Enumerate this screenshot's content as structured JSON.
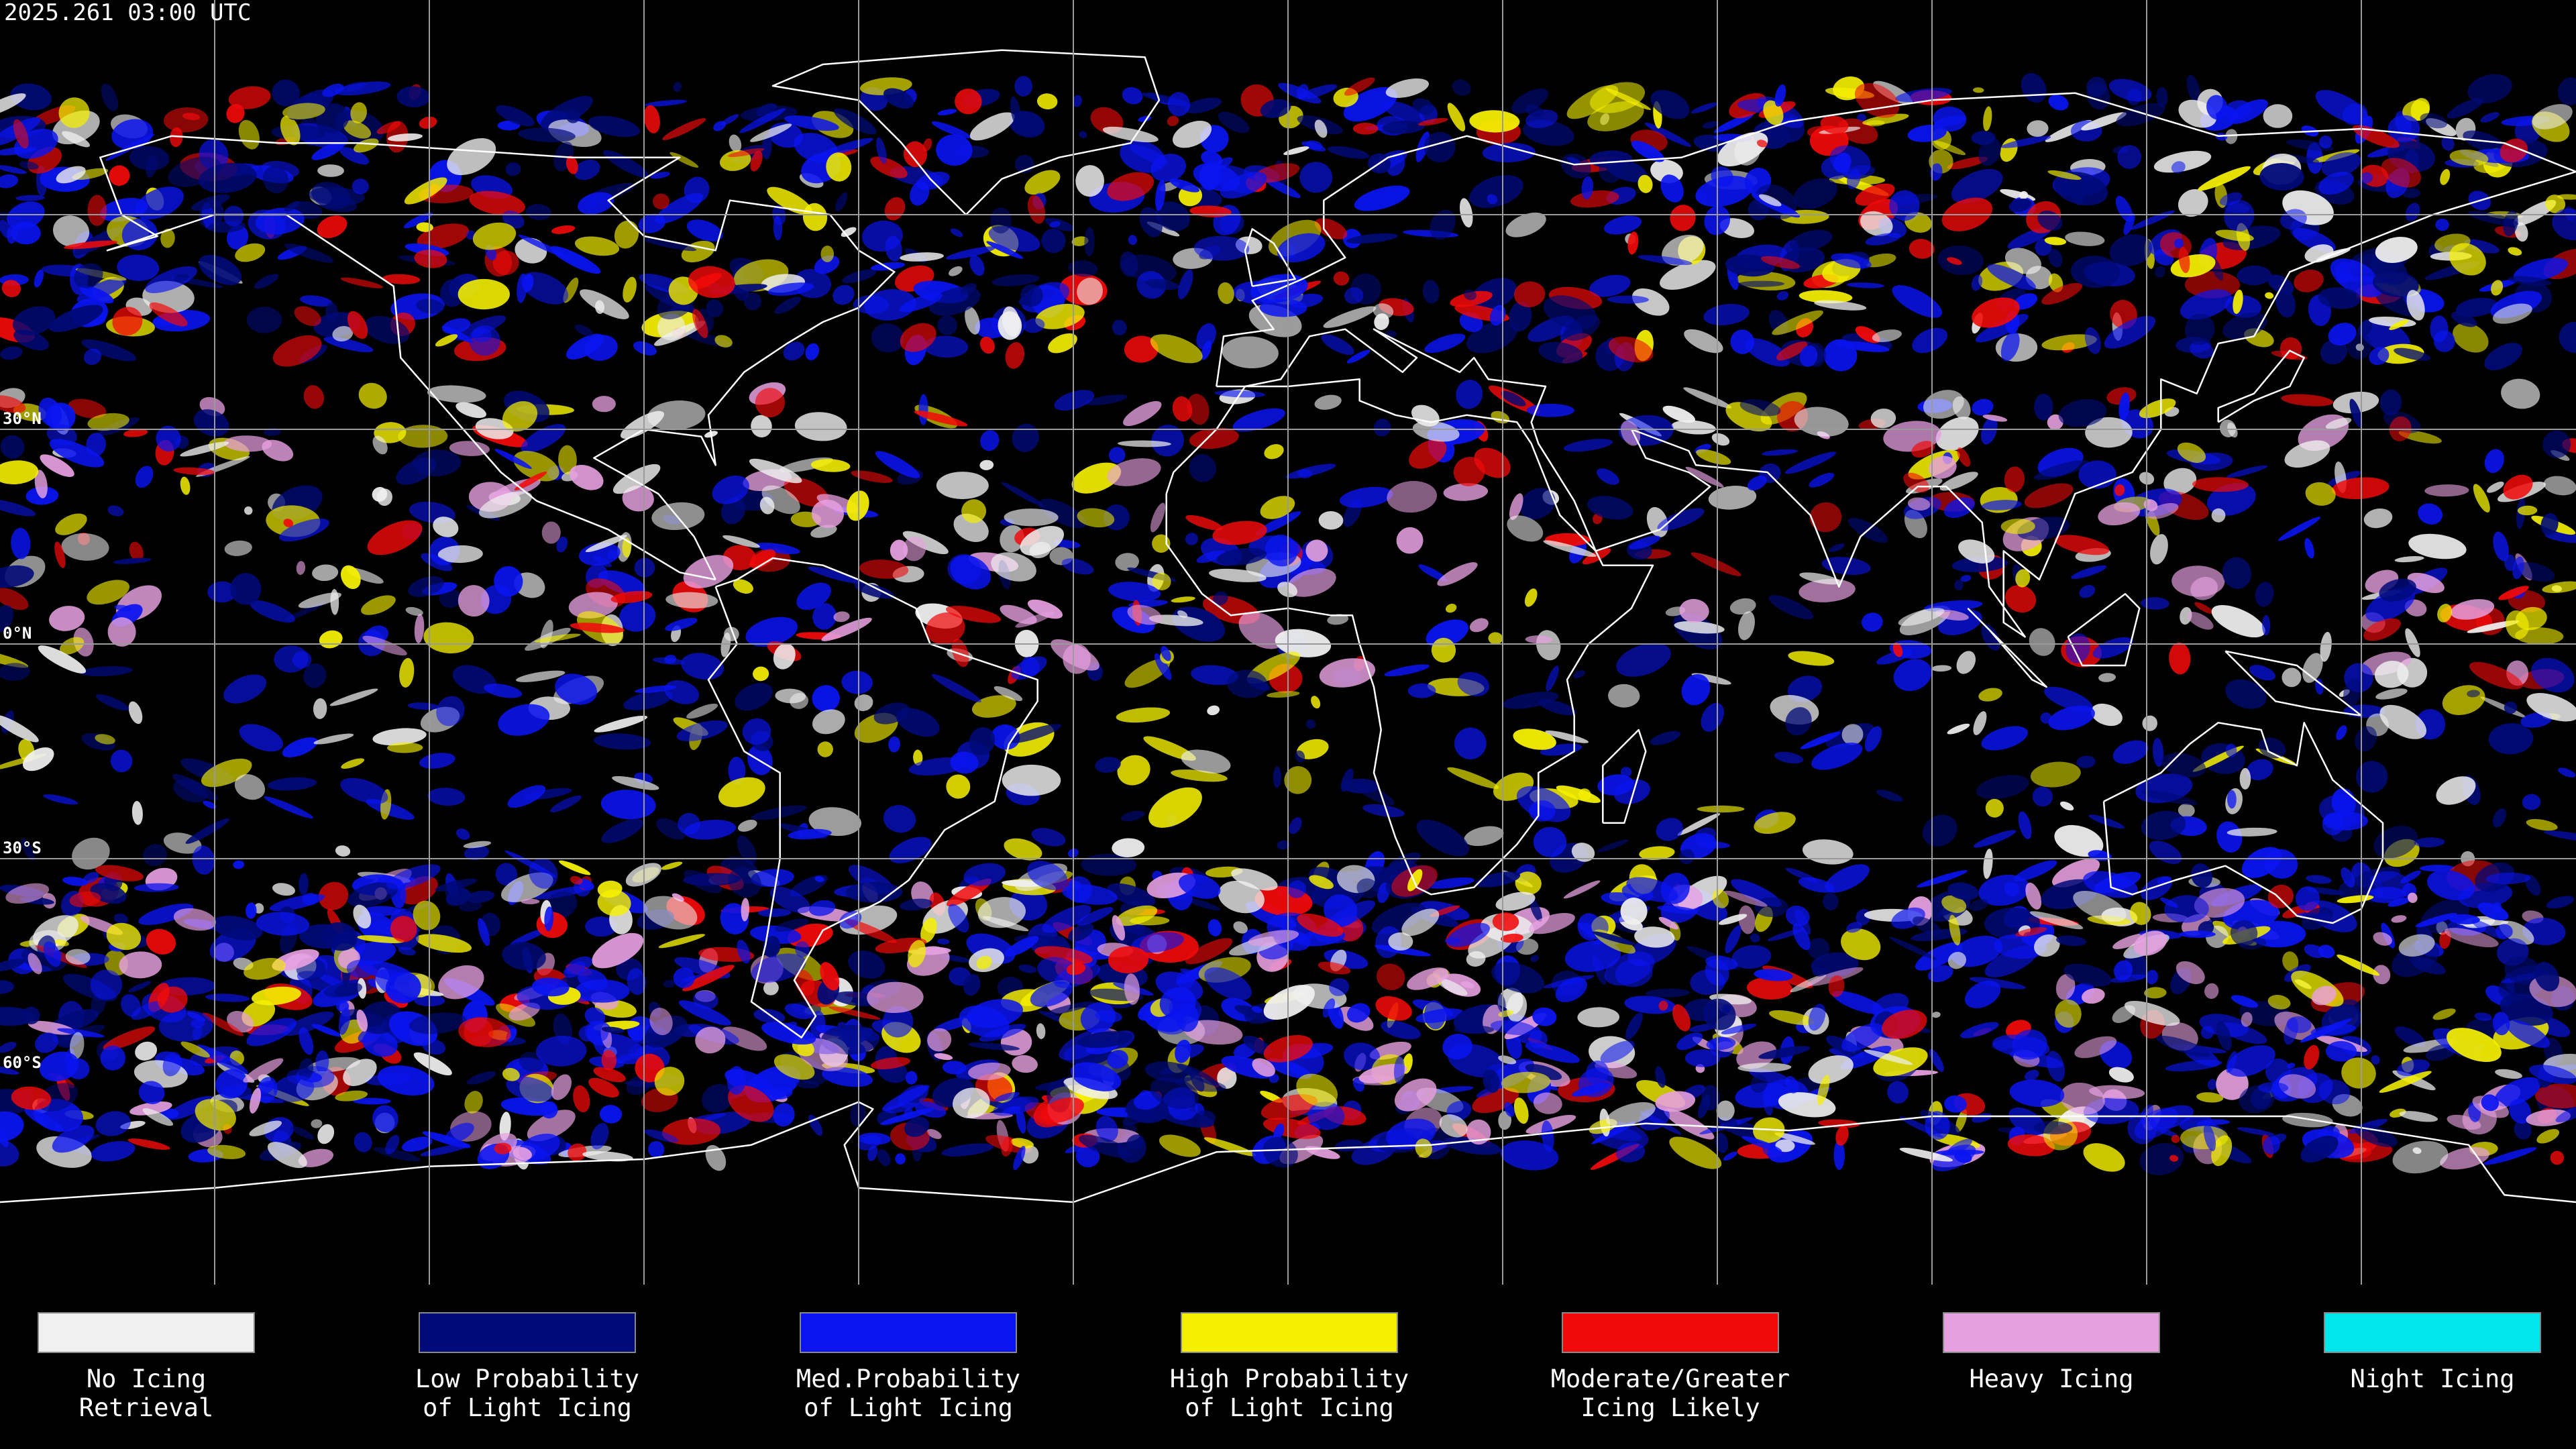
{
  "header": {
    "timestamp": "2025.261 03:00 UTC"
  },
  "grid": {
    "lat_labels": [
      "30°N",
      "0°N",
      "30°S",
      "60°S"
    ]
  },
  "legend": [
    {
      "label": [
        "No Icing",
        "Retrieval"
      ],
      "color": "#f0f0f0"
    },
    {
      "label": [
        "Low Probability",
        "of Light Icing"
      ],
      "color": "#000a78"
    },
    {
      "label": [
        "Med.Probability",
        "of Light Icing"
      ],
      "color": "#0a14f0"
    },
    {
      "label": [
        "High Probability",
        "of Light Icing"
      ],
      "color": "#f5f000"
    },
    {
      "label": [
        "Moderate/Greater",
        "Icing Likely"
      ],
      "color": "#f00a0a"
    },
    {
      "label": [
        "Heavy Icing"
      ],
      "color": "#e6a0e0"
    },
    {
      "label": [
        "Night Icing"
      ],
      "color": "#00e6ec"
    }
  ]
}
